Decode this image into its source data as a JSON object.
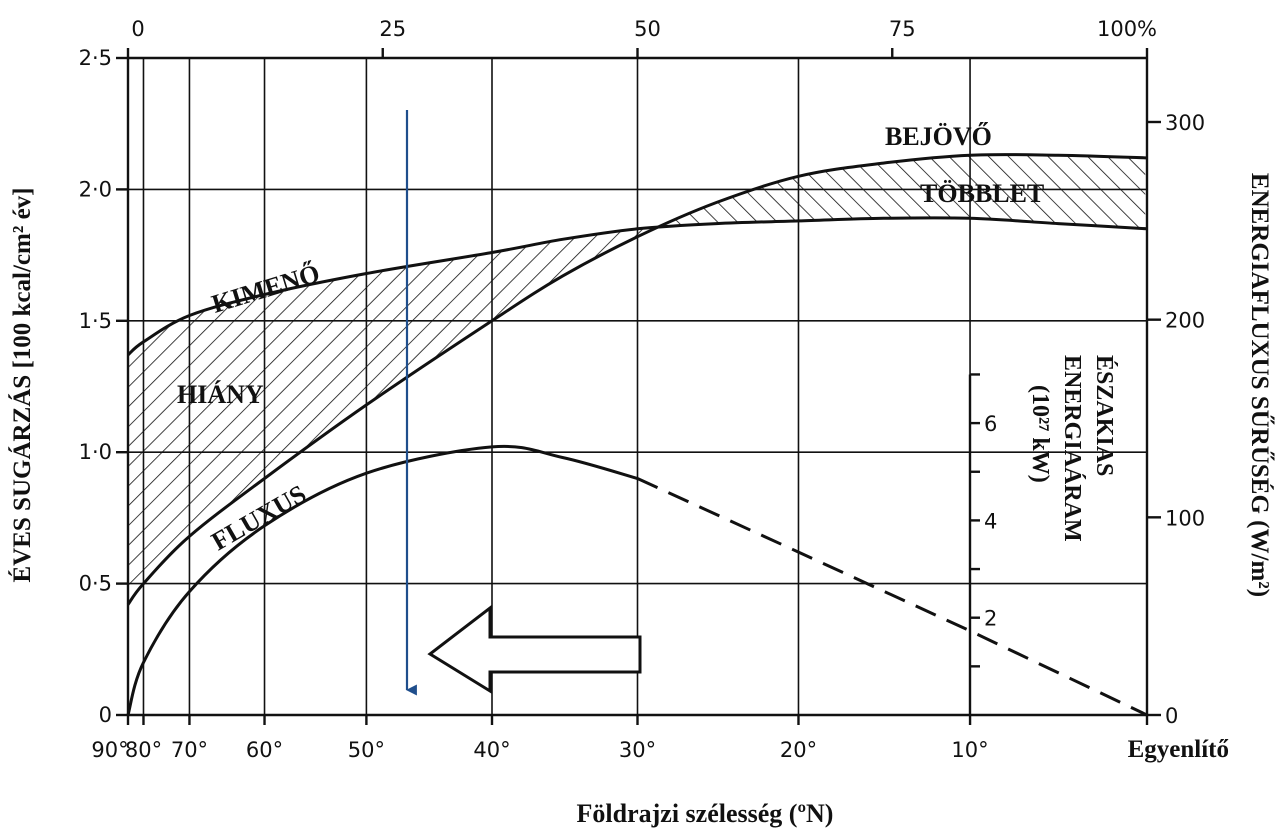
{
  "chart_data": {
    "type": "line",
    "title": "",
    "xlabel": "Földrajzi szélesség (ºN)",
    "ylabel_left": "ÉVES SUGÁRZÁS [100 kcal/cm² év]",
    "ylabel_right_outer": "ENERGIAFLUXUS SŰRŰSÉG (W/m²)",
    "ylabel_right_inner": [
      "ÉSZAKIAS",
      "ENERGIAÁRAM",
      "(10²⁷ kW)"
    ],
    "x_bottom_ticks": [
      "90°",
      "80°",
      "70°",
      "60°",
      "50°",
      "40°",
      "30°",
      "20°",
      "10°",
      "Egyenlítő"
    ],
    "x_top_ticks": [
      "0",
      "25",
      "50",
      "75",
      "100%"
    ],
    "y_left_ticks": [
      "0",
      "0·5",
      "1·0",
      "1·5",
      "2·0",
      "2·5"
    ],
    "y_left_range": [
      0,
      2.5
    ],
    "y_right_outer_ticks": [
      "0",
      "100",
      "200",
      "300"
    ],
    "y_right_inner_ticks": [
      "2",
      "4",
      "6"
    ],
    "x_axis_note": "latitude axis is sine-scaled (area-proportional); top axis 0–100%",
    "series": [
      {
        "name": "BEJÖVŐ",
        "x_lat": [
          90,
          80,
          70,
          60,
          50,
          40,
          35,
          30,
          25,
          20,
          15,
          10,
          5,
          0
        ],
        "y": [
          0.42,
          0.5,
          0.68,
          0.9,
          1.18,
          1.5,
          1.67,
          1.82,
          1.95,
          2.05,
          2.1,
          2.13,
          2.13,
          2.12
        ]
      },
      {
        "name": "KIMENŐ",
        "x_lat": [
          90,
          80,
          70,
          60,
          50,
          40,
          35,
          30,
          25,
          20,
          15,
          10,
          5,
          0
        ],
        "y": [
          1.37,
          1.42,
          1.52,
          1.6,
          1.68,
          1.76,
          1.81,
          1.85,
          1.87,
          1.88,
          1.89,
          1.89,
          1.87,
          1.85
        ]
      },
      {
        "name": "FLUXUS",
        "x_lat": [
          90,
          80,
          70,
          60,
          50,
          40,
          35,
          30,
          20,
          10,
          0
        ],
        "y": [
          0.0,
          0.2,
          0.47,
          0.72,
          0.92,
          1.02,
          0.98,
          0.9,
          0.62,
          0.32,
          0.0
        ],
        "dashed_from_lat": 30
      }
    ],
    "annotations": {
      "outgoing": "KIMENŐ",
      "incoming": "BEJÖVŐ",
      "surplus": "TÖBBLET",
      "deficit": "HIÁNY",
      "flux": "FLUXUS"
    },
    "grid": true,
    "colors": {
      "ink": "#111111",
      "marker_arrow": "#1f4e8c"
    }
  }
}
